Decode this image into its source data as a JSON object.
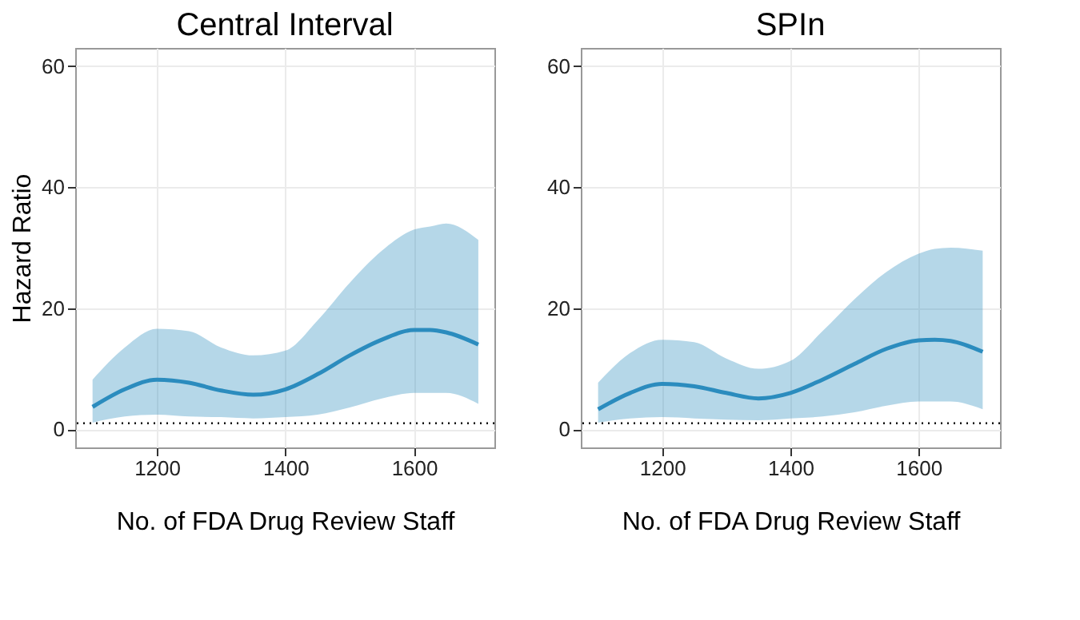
{
  "chart_data": [
    {
      "type": "line",
      "title": "Central Interval",
      "xlabel": "No. of FDA Drug Review Staff",
      "ylabel": "Hazard Ratio",
      "x": [
        1100,
        1150,
        1200,
        1250,
        1300,
        1350,
        1400,
        1450,
        1500,
        1550,
        1600,
        1625,
        1650,
        1700
      ],
      "series": [
        {
          "color": "#2b8cbe",
          "values": [
            3.7,
            6.6,
            8.2,
            7.7,
            6.4,
            5.7,
            6.6,
            9.1,
            12.2,
            14.8,
            16.4,
            16.4,
            16.0,
            14.0
          ],
          "lower": [
            1.1,
            2.1,
            2.4,
            2.1,
            2.0,
            1.8,
            2.0,
            2.4,
            3.6,
            5.1,
            6.0,
            6.0,
            6.0,
            4.2
          ],
          "upper": [
            8.2,
            13.5,
            16.6,
            16.2,
            13.5,
            12.2,
            13.0,
            18.0,
            24.2,
            29.5,
            33.0,
            33.5,
            34.0,
            31.3
          ]
        }
      ],
      "xlim": [
        1073,
        1725
      ],
      "xticks": [
        1200,
        1400,
        1600
      ],
      "ylim": [
        -3,
        63
      ],
      "yticks": [
        0,
        20,
        40,
        60
      ],
      "grid": true,
      "line_style": "solid",
      "marker": "none",
      "ref_lines": [
        {
          "axis": "y",
          "value": 1,
          "line_style": "dotted",
          "color": "#000000"
        }
      ]
    },
    {
      "type": "line",
      "title": "SPIn",
      "xlabel": "No. of FDA Drug Review Staff",
      "x": [
        1100,
        1150,
        1200,
        1250,
        1300,
        1350,
        1400,
        1450,
        1500,
        1550,
        1600,
        1625,
        1650,
        1700
      ],
      "series": [
        {
          "color": "#2b8cbe",
          "values": [
            3.3,
            6.0,
            7.5,
            7.1,
            6.0,
            5.1,
            6.0,
            8.2,
            10.8,
            13.3,
            14.7,
            14.8,
            14.6,
            12.8
          ],
          "lower": [
            1.1,
            1.8,
            2.0,
            1.8,
            1.6,
            1.5,
            1.8,
            2.1,
            2.8,
            3.9,
            4.6,
            4.6,
            4.6,
            3.3
          ],
          "upper": [
            7.7,
            12.6,
            14.8,
            14.4,
            11.7,
            10.0,
            11.3,
            16.2,
            21.5,
            26.0,
            29.0,
            29.8,
            30.0,
            29.5
          ]
        }
      ],
      "xlim": [
        1073,
        1727
      ],
      "xticks": [
        1200,
        1400,
        1600
      ],
      "ylim": [
        -3,
        63
      ],
      "yticks": [
        0,
        20,
        40,
        60
      ],
      "grid": true,
      "line_style": "solid",
      "marker": "none",
      "ref_lines": [
        {
          "axis": "y",
          "value": 1,
          "line_style": "dotted",
          "color": "#000000"
        }
      ]
    }
  ]
}
